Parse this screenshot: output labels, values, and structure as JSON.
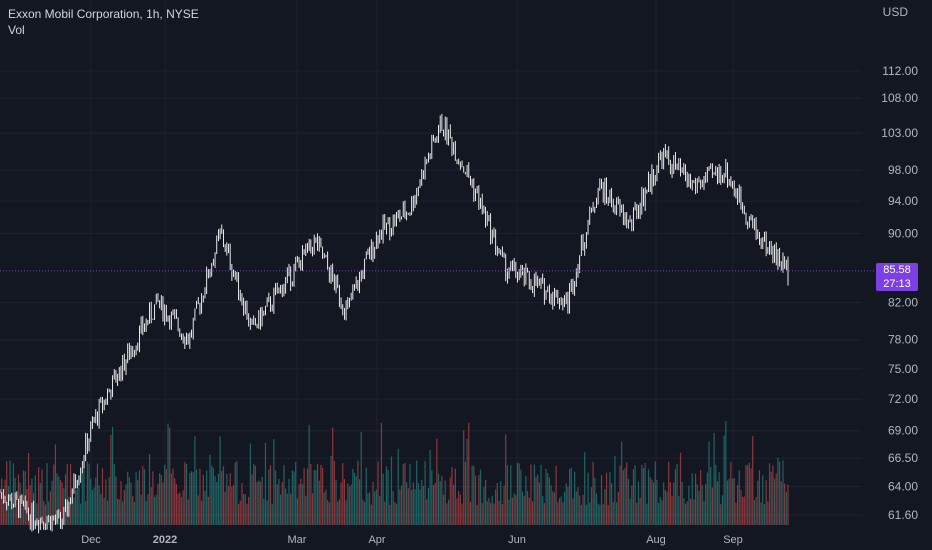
{
  "header": {
    "symbol_line": "Exxon Mobil Corporation, 1h, NYSE",
    "indicator_label": "Vol",
    "currency": "USD"
  },
  "current_price": {
    "value": "85.58",
    "countdown": "27:13",
    "price": 85.58
  },
  "colors": {
    "background": "#131722",
    "grid": "#1e2230",
    "axis_text": "#b2b5be",
    "candle": "#ffffff",
    "volume_up": "#26a69a",
    "volume_down": "#ef5350",
    "price_tag": "#7b3fe4"
  },
  "chart_data": {
    "type": "candlestick",
    "title": "Exxon Mobil Corporation, 1h, NYSE",
    "y_axis_scale": "log",
    "y_ticks": [
      "112.00",
      "108.00",
      "103.00",
      "98.00",
      "94.00",
      "90.00",
      "82.00",
      "78.00",
      "75.00",
      "72.00",
      "69.00",
      "66.50",
      "64.00",
      "61.60"
    ],
    "x_ticks": [
      "Dec",
      "2022",
      "Mar",
      "Apr",
      "Jun",
      "Aug",
      "Sep"
    ],
    "ylim": [
      60.5,
      120
    ],
    "approx_close_path": [
      {
        "t": "Nov",
        "close": 63.5
      },
      {
        "t": "Dec",
        "close": 61.5
      },
      {
        "t": "2022",
        "close": 61.0
      },
      {
        "t": "mid-Jan",
        "close": 70
      },
      {
        "t": "late-Jan",
        "close": 76
      },
      {
        "t": "Feb",
        "close": 82
      },
      {
        "t": "late-Feb",
        "close": 78
      },
      {
        "t": "Mar",
        "close": 90
      },
      {
        "t": "mid-Mar",
        "close": 79
      },
      {
        "t": "Apr",
        "close": 84
      },
      {
        "t": "mid-Apr",
        "close": 89
      },
      {
        "t": "late-Apr",
        "close": 81
      },
      {
        "t": "May",
        "close": 90
      },
      {
        "t": "mid-May",
        "close": 93
      },
      {
        "t": "Jun",
        "close": 104.5
      },
      {
        "t": "mid-Jun",
        "close": 96
      },
      {
        "t": "late-Jun",
        "close": 86
      },
      {
        "t": "Jul",
        "close": 84
      },
      {
        "t": "mid-Jul",
        "close": 82
      },
      {
        "t": "Aug",
        "close": 96
      },
      {
        "t": "mid-Aug",
        "close": 91
      },
      {
        "t": "late-Aug",
        "close": 100
      },
      {
        "t": "Sep",
        "close": 96
      },
      {
        "t": "mid-Sep",
        "close": 98
      },
      {
        "t": "late-Sep",
        "close": 90
      },
      {
        "t": "now",
        "close": 85.58
      }
    ]
  }
}
